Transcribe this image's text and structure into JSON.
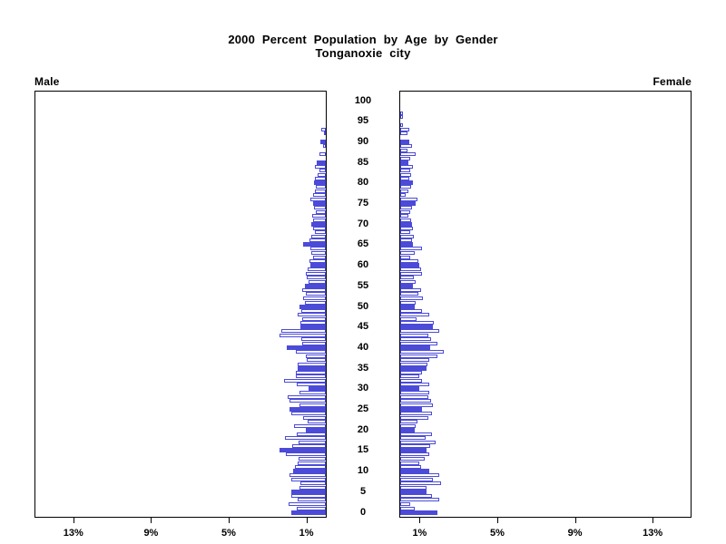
{
  "title": {
    "line1": "2000 Percent Population by Age by Gender",
    "line2": "Tonganoxie city"
  },
  "panels": {
    "male_label": "Male",
    "female_label": "Female"
  },
  "colors": {
    "bar_blue": "#4B4BD8",
    "axis_black": "#000000",
    "background": "#FFFFFF"
  },
  "chart_data": {
    "type": "bar",
    "subtype": "population-pyramid",
    "title": "2000 Percent Population by Age by Gender",
    "subtitle": "Tonganoxie city",
    "left_series_label": "Male",
    "right_series_label": "Female",
    "grid": false,
    "legend": false,
    "highlight_every_5_years_solid": true,
    "x_axis": {
      "unit": "percent",
      "ticks": [
        1,
        5,
        9,
        13
      ],
      "tick_labels": [
        "1%",
        "5%",
        "9%",
        "13%"
      ],
      "max": 15
    },
    "age_axis": {
      "min": 0,
      "max": 100,
      "tick_interval": 5,
      "tick_labels": [
        "0",
        "5",
        "10",
        "15",
        "20",
        "25",
        "30",
        "35",
        "40",
        "45",
        "50",
        "55",
        "60",
        "65",
        "70",
        "75",
        "80",
        "85",
        "90",
        "95",
        "100"
      ]
    },
    "ages_start": 0,
    "series": [
      {
        "name": "Male",
        "values": [
          1.8,
          1.5,
          1.9,
          1.45,
          1.8,
          1.8,
          1.35,
          1.3,
          1.8,
          1.85,
          1.7,
          1.6,
          1.45,
          1.4,
          2.05,
          2.4,
          1.75,
          1.4,
          2.1,
          1.5,
          1.05,
          1.65,
          0.95,
          1.15,
          1.8,
          1.85,
          1.35,
          1.85,
          1.95,
          1.35,
          0.9,
          1.5,
          2.15,
          1.55,
          1.55,
          1.45,
          1.45,
          1.0,
          1.05,
          1.55,
          2.0,
          1.2,
          1.25,
          2.4,
          2.3,
          1.3,
          1.3,
          1.2,
          1.45,
          1.25,
          1.35,
          1.1,
          1.15,
          1.05,
          1.2,
          1.1,
          0.9,
          1.0,
          1.05,
          0.95,
          0.8,
          0.85,
          0.65,
          0.75,
          0.8,
          1.15,
          0.85,
          0.75,
          0.55,
          0.65,
          0.75,
          0.65,
          0.7,
          0.5,
          0.6,
          0.65,
          0.8,
          0.65,
          0.55,
          0.5,
          0.6,
          0.55,
          0.4,
          0.35,
          0.55,
          0.45,
          0,
          0.35,
          0,
          0.15,
          0.3,
          0,
          0.1,
          0.25,
          0,
          0,
          0,
          0,
          0,
          0,
          0
        ]
      },
      {
        "name": "Female",
        "values": [
          1.9,
          0.75,
          0.5,
          2.0,
          1.65,
          1.35,
          1.35,
          2.1,
          1.7,
          2.0,
          1.5,
          1.05,
          1.0,
          1.25,
          1.5,
          1.35,
          1.55,
          1.8,
          1.3,
          1.65,
          0.75,
          0.8,
          0.9,
          1.45,
          1.65,
          1.1,
          1.7,
          1.6,
          1.45,
          1.5,
          1.0,
          1.5,
          1.1,
          1.0,
          1.1,
          1.35,
          1.4,
          1.5,
          1.9,
          2.25,
          1.55,
          1.9,
          1.6,
          1.45,
          2.0,
          1.7,
          1.75,
          0.85,
          1.5,
          1.1,
          0.75,
          0.8,
          1.15,
          0.95,
          1.05,
          0.65,
          0.8,
          0.7,
          1.1,
          1.05,
          1.0,
          0.95,
          0.5,
          0.75,
          1.1,
          0.65,
          0.6,
          0.7,
          0.5,
          0.65,
          0.6,
          0.55,
          0.4,
          0.5,
          0.6,
          0.8,
          0.9,
          0.3,
          0.4,
          0.55,
          0.65,
          0.45,
          0.55,
          0.5,
          0.65,
          0.4,
          0.5,
          0.8,
          0.35,
          0.6,
          0.45,
          0,
          0.35,
          0.45,
          0.15,
          0,
          0.12,
          0.15,
          0,
          0,
          0
        ]
      }
    ]
  }
}
